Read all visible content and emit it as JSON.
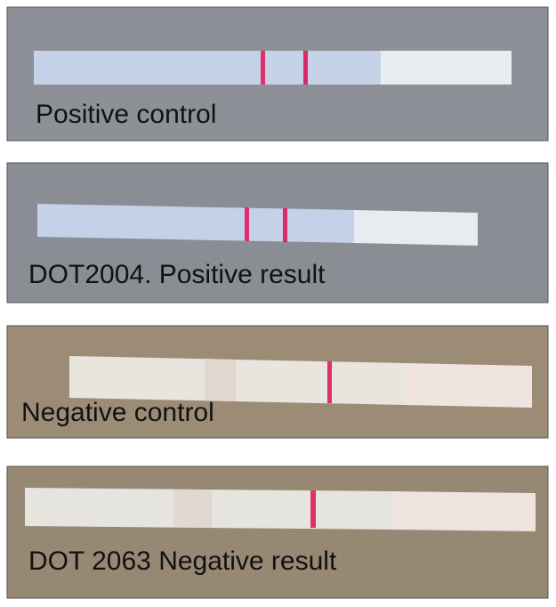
{
  "panels": [
    {
      "label": "Positive control"
    },
    {
      "label": "DOT2004. Positive result"
    },
    {
      "label": "Negative control"
    },
    {
      "label": "DOT 2063 Negative result"
    }
  ]
}
